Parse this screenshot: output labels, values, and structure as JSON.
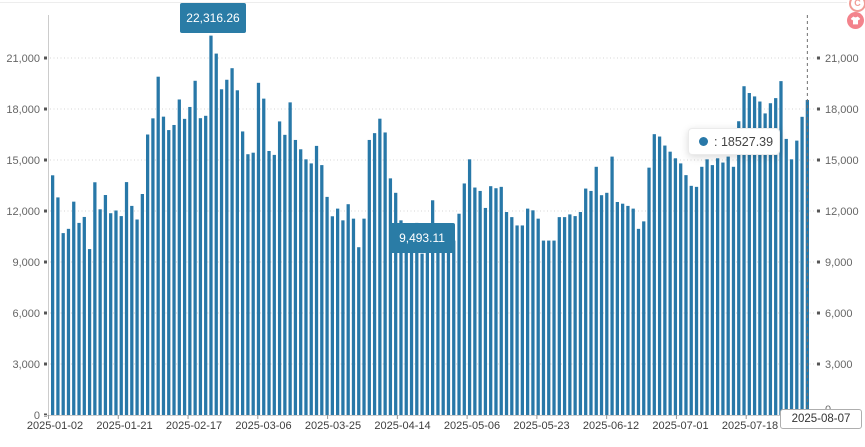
{
  "chart_data": {
    "type": "bar",
    "title": "",
    "xlabel": "",
    "ylabel": "",
    "ylim": [
      0,
      22500
    ],
    "grid": true,
    "categories": [
      "2025-01-02",
      "2025-01-21",
      "2025-02-17",
      "2025-03-06",
      "2025-03-25",
      "2025-04-14",
      "2025-05-06",
      "2025-05-23",
      "2025-06-12",
      "2025-07-01",
      "2025-07-18",
      "2025-08-07"
    ],
    "x_tick_labels": [
      "2025-01-02",
      "2025-01-21",
      "2025-02-17",
      "2025-03-06",
      "2025-03-25",
      "2025-04-14",
      "2025-05-06",
      "2025-05-23",
      "2025-06-12",
      "2025-07-01",
      "2025-07-18",
      "2025-08-07"
    ],
    "y_tick_values": [
      0,
      3000,
      6000,
      9000,
      12000,
      15000,
      18000,
      21000
    ],
    "y_tick_labels": [
      "0",
      "3,000",
      "6,000",
      "9,000",
      "12,000",
      "15,000",
      "18,000",
      "21,000"
    ],
    "values": [
      14100,
      12800,
      10700,
      10950,
      12550,
      11300,
      11650,
      9760,
      13690,
      12100,
      12940,
      11870,
      12030,
      11700,
      13700,
      12300,
      11500,
      13000,
      16500,
      17450,
      19900,
      17550,
      16760,
      17060,
      18560,
      17420,
      18120,
      19660,
      17460,
      17600,
      22316.26,
      21260,
      19160,
      19720,
      20400,
      19100,
      16680,
      15340,
      15430,
      19540,
      18610,
      15530,
      15300,
      17270,
      16480,
      18390,
      16180,
      15630,
      15040,
      14800,
      15830,
      14700,
      12830,
      11690,
      12140,
      11450,
      12400,
      11550,
      9870,
      11550,
      16180,
      16580,
      17430,
      16620,
      13920,
      13070,
      11450,
      10300,
      10100,
      11300,
      9493.11,
      10200,
      12630,
      10400,
      10000,
      10300,
      10260,
      11840,
      13620,
      15040,
      13380,
      13180,
      12180,
      13460,
      13340,
      13420,
      11940,
      11640,
      11150,
      11150,
      12140,
      12040,
      11550,
      10260,
      10260,
      10260,
      11640,
      11640,
      11800,
      11700,
      11940,
      13320,
      13180,
      14600,
      12930,
      13070,
      15200,
      12530,
      12430,
      12300,
      12140,
      10950,
      11390,
      14550,
      16520,
      16380,
      15850,
      15490,
      15100,
      14800,
      14110,
      13480,
      13420,
      14600,
      15040,
      14700,
      15100,
      14850,
      15200,
      14600,
      17280,
      19340,
      18940,
      18740,
      18440,
      17740,
      18340,
      18640,
      19640,
      16240,
      15040,
      16140,
      17540,
      18527.39
    ],
    "annotations": {
      "max_label": "22,316.26",
      "min_label": "9,493.11",
      "tooltip_text": ": 18527.39",
      "axis_pointer_label": "2025-08-07"
    },
    "colors": {
      "bar": "#2878a8",
      "label_box": "#2a7ca6",
      "tooltip_dot": "#2878a8",
      "crosshair": "#707070"
    },
    "legend": "none"
  },
  "ui": {
    "icons": {
      "c_badge_text": "C"
    }
  }
}
